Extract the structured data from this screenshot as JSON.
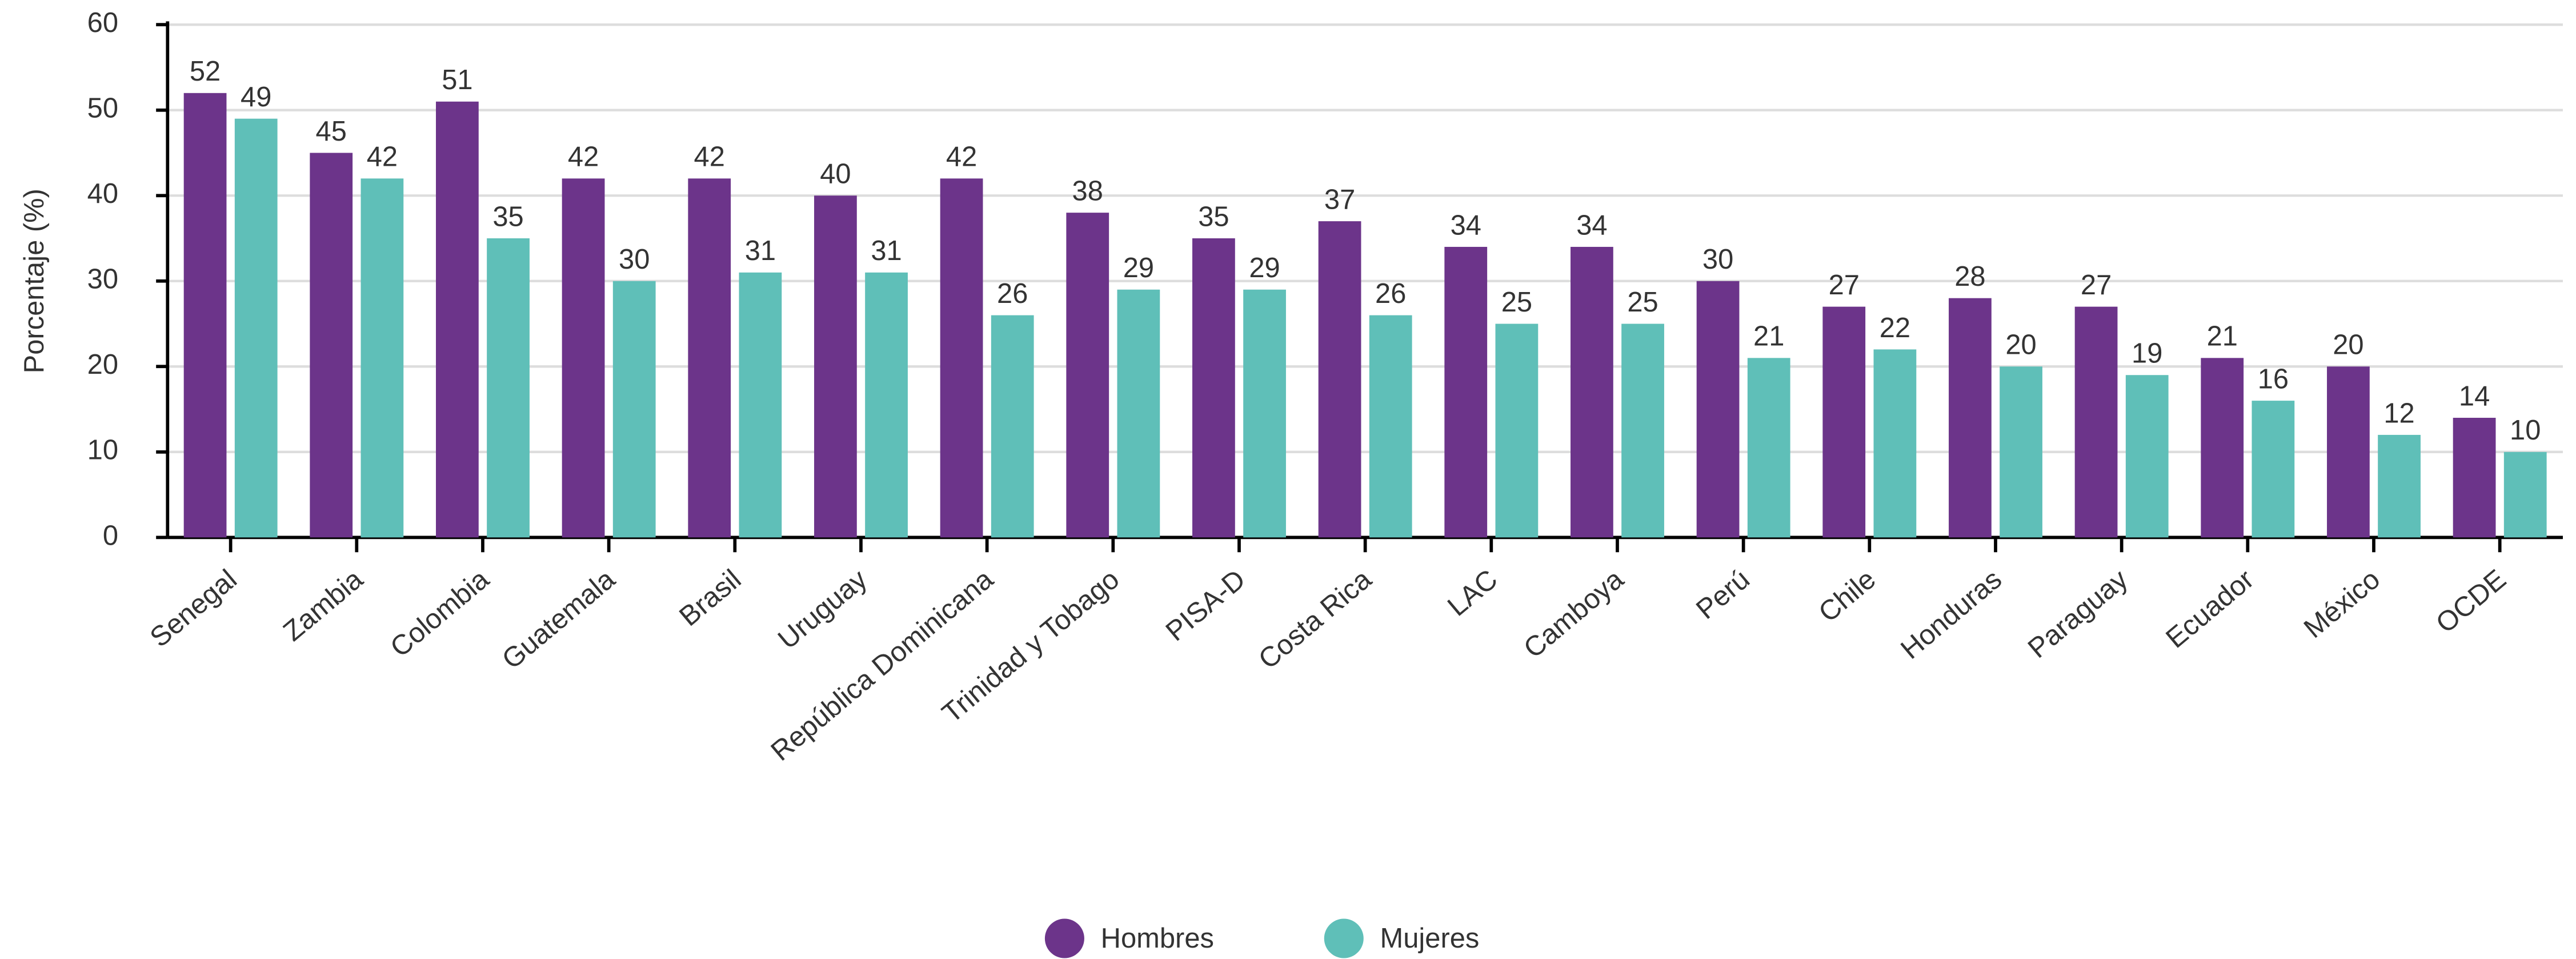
{
  "chart_data": {
    "type": "bar",
    "y_label": "Porcentaje (%)",
    "categories": [
      "Senegal",
      "Zambia",
      "Colombia",
      "Guatemala",
      "Brasil",
      "Uruguay",
      "República Dominicana",
      "Trinidad y Tobago",
      "PISA-D",
      "Costa Rica",
      "LAC",
      "Camboya",
      "Perú",
      "Chile",
      "Honduras",
      "Paraguay",
      "Ecuador",
      "México",
      "OCDE"
    ],
    "series": [
      {
        "name": "Hombres",
        "color": "#6c348a",
        "values": [
          52,
          45,
          51,
          42,
          42,
          40,
          42,
          38,
          35,
          37,
          34,
          34,
          30,
          27,
          28,
          27,
          21,
          20,
          14
        ]
      },
      {
        "name": "Mujeres",
        "color": "#5fbfb8",
        "values": [
          49,
          42,
          35,
          30,
          31,
          31,
          26,
          29,
          29,
          26,
          25,
          25,
          21,
          22,
          20,
          19,
          16,
          12,
          10
        ]
      }
    ],
    "ylim": [
      0,
      60
    ],
    "yticks": [
      0,
      10,
      20,
      30,
      40,
      50,
      60
    ],
    "grid": true,
    "legend": "bottom"
  }
}
